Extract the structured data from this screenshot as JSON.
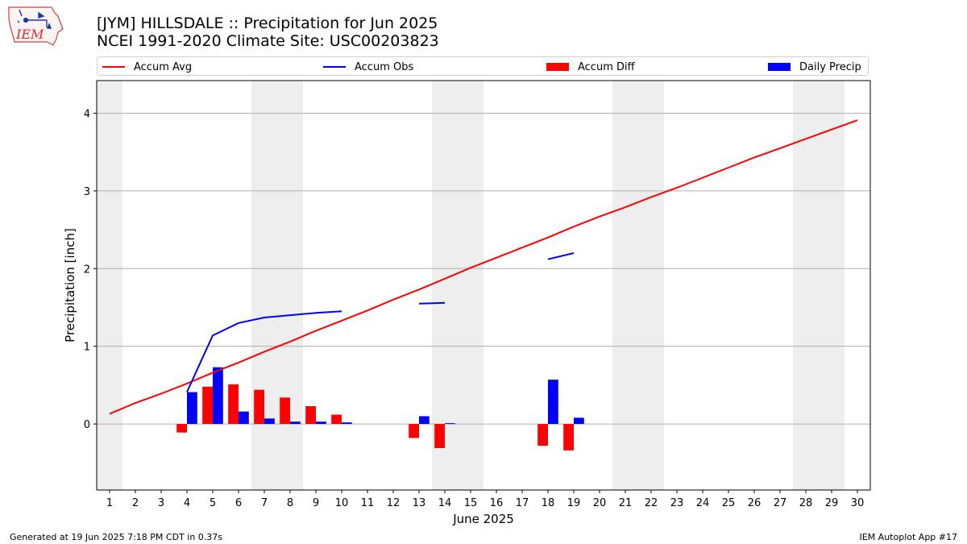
{
  "header": {
    "title_line1": "[JYM] HILLSDALE :: Precipitation for Jun 2025",
    "title_line2": "NCEI 1991-2020 Climate Site: USC00203823",
    "logo_text": "IEM"
  },
  "legend": {
    "accum_avg": "Accum Avg",
    "accum_obs": "Accum Obs",
    "accum_diff": "Accum Diff",
    "daily_precip": "Daily Precip"
  },
  "footer": {
    "generated": "Generated at 19 Jun 2025 7:18 PM CDT in 0.37s",
    "app": "IEM Autoplot App #17"
  },
  "colors": {
    "avg": "#ff0000",
    "obs": "#0000ff",
    "diff": "#ff0000",
    "daily": "#0000ff",
    "weekend_band": "#eeeeee",
    "grid": "#b0b0b0"
  },
  "chart_data": {
    "type": "bar",
    "title": "[JYM] HILLSDALE :: Precipitation for Jun 2025",
    "xlabel": "June 2025",
    "ylabel": "Precipitation [inch]",
    "ylim": [
      -0.85,
      4.42
    ],
    "xlim": [
      0.5,
      30.5
    ],
    "yticks": [
      0,
      1,
      2,
      3,
      4
    ],
    "grid": "y",
    "legend_position": "top",
    "x": [
      1,
      2,
      3,
      4,
      5,
      6,
      7,
      8,
      9,
      10,
      11,
      12,
      13,
      14,
      15,
      16,
      17,
      18,
      19,
      20,
      21,
      22,
      23,
      24,
      25,
      26,
      27,
      28,
      29,
      30
    ],
    "weekend_days": [
      1,
      7,
      8,
      14,
      15,
      21,
      22,
      28,
      29
    ],
    "series": [
      {
        "name": "Accum Avg",
        "kind": "line",
        "values": [
          0.13,
          0.27,
          0.39,
          0.52,
          0.66,
          0.79,
          0.93,
          1.06,
          1.2,
          1.33,
          1.46,
          1.6,
          1.73,
          1.87,
          2.01,
          2.14,
          2.27,
          2.4,
          2.54,
          2.67,
          2.79,
          2.92,
          3.04,
          3.17,
          3.3,
          3.43,
          3.55,
          3.67,
          3.79,
          3.91
        ]
      },
      {
        "name": "Accum Obs",
        "kind": "line",
        "values": [
          null,
          null,
          null,
          0.41,
          1.14,
          1.3,
          1.37,
          1.4,
          1.43,
          1.45,
          null,
          null,
          1.55,
          1.56,
          null,
          null,
          null,
          2.12,
          2.2,
          null,
          null,
          null,
          null,
          null,
          null,
          null,
          null,
          null,
          null,
          null
        ]
      },
      {
        "name": "Accum Diff",
        "kind": "bar",
        "offset": -0.2,
        "values": [
          null,
          null,
          null,
          -0.11,
          0.48,
          0.51,
          0.44,
          0.34,
          0.23,
          0.12,
          null,
          null,
          -0.18,
          -0.31,
          null,
          null,
          null,
          -0.28,
          -0.34,
          null,
          null,
          null,
          null,
          null,
          null,
          null,
          null,
          null,
          null,
          null
        ]
      },
      {
        "name": "Daily Precip",
        "kind": "bar",
        "offset": 0.2,
        "values": [
          null,
          null,
          null,
          0.41,
          0.73,
          0.16,
          0.07,
          0.03,
          0.03,
          0.02,
          null,
          null,
          0.1,
          0.01,
          null,
          null,
          null,
          0.57,
          0.08,
          null,
          null,
          null,
          null,
          null,
          null,
          null,
          null,
          null,
          null,
          null
        ]
      }
    ]
  }
}
